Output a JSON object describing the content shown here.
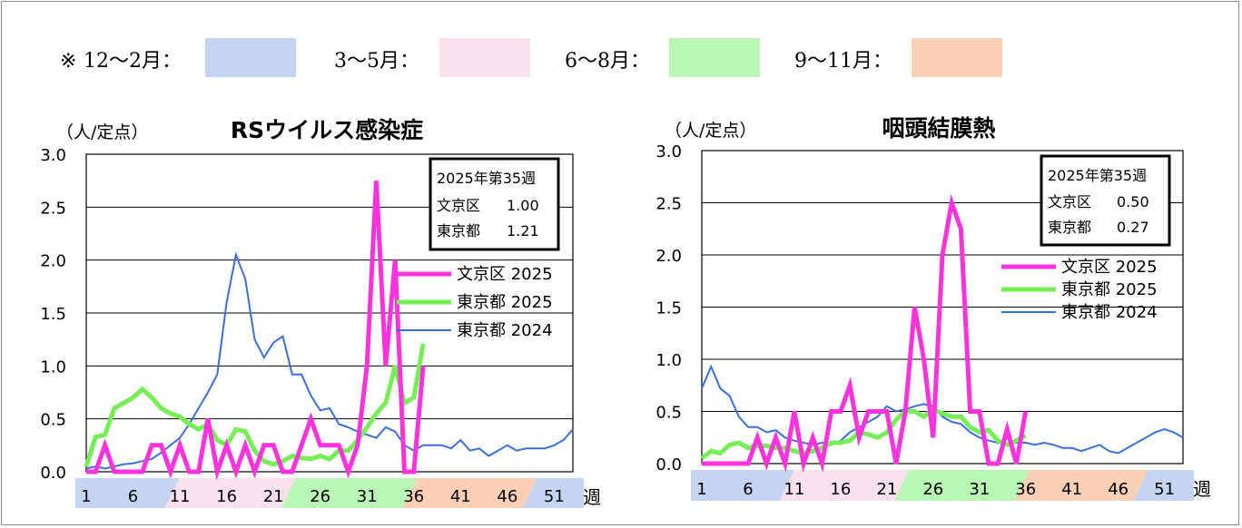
{
  "season_legend": {
    "prefix": "※",
    "items": [
      {
        "label": "12～2月：",
        "color": "#c6d4f2"
      },
      {
        "label": "3～5月：",
        "color": "#fbe0ee"
      },
      {
        "label": "6～8月：",
        "color": "#b8f7b4"
      },
      {
        "label": "9～11月：",
        "color": "#fbd0b4"
      }
    ]
  },
  "colors": {
    "bunkyo2025": "#ff33dd",
    "tokyo2025": "#77ee55",
    "tokyo2024": "#3a6fe0"
  },
  "chart_data": [
    {
      "type": "line",
      "title": "RSウイルス感染症",
      "ylabel": "（人/定点）",
      "xlabel": "週",
      "ylim": [
        0,
        3.0
      ],
      "yticks": [
        "0.0",
        "0.5",
        "1.0",
        "1.5",
        "2.0",
        "2.5",
        "3.0"
      ],
      "xlim": [
        1,
        53
      ],
      "xtick_labels": [
        "1",
        "6",
        "11",
        "16",
        "21",
        "26",
        "31",
        "36",
        "41",
        "46",
        "51"
      ],
      "grid": true,
      "info_box": {
        "line1": "2025年第35週",
        "line2_label": "文京区",
        "line2_value": "1.00",
        "line3_label": "東京都",
        "line3_value": "1.21"
      },
      "legend_position": "right",
      "series": [
        {
          "name": "文京区 2025",
          "color": "#ff33dd",
          "width": 5,
          "values": [
            0,
            0,
            0.25,
            0,
            0,
            0,
            0,
            0.25,
            0.25,
            0,
            0.25,
            0,
            0,
            0.5,
            0,
            0.25,
            0,
            0.25,
            0,
            0.25,
            0.25,
            0,
            0,
            0.25,
            0.5,
            0.25,
            0.25,
            0.25,
            0,
            0.25,
            1.0,
            2.75,
            1.0,
            2.0,
            0,
            0,
            1.0
          ]
        },
        {
          "name": "東京都 2025",
          "color": "#77ee55",
          "width": 5,
          "values": [
            0.05,
            0.33,
            0.35,
            0.6,
            0.65,
            0.7,
            0.78,
            0.7,
            0.6,
            0.55,
            0.52,
            0.45,
            0.4,
            0.45,
            0.3,
            0.25,
            0.4,
            0.38,
            0.2,
            0.1,
            0.07,
            0.1,
            0.15,
            0.13,
            0.12,
            0.15,
            0.12,
            0.2,
            0.2,
            0.3,
            0.42,
            0.55,
            0.65,
            1.0,
            0.65,
            0.7,
            1.21
          ]
        },
        {
          "name": "東京都 2024",
          "color": "#3a6fe0",
          "width": 2,
          "values": [
            0.03,
            0.05,
            0.03,
            0.05,
            0.07,
            0.08,
            0.1,
            0.12,
            0.18,
            0.25,
            0.32,
            0.45,
            0.6,
            0.75,
            0.92,
            1.6,
            2.05,
            1.82,
            1.25,
            1.08,
            1.22,
            1.28,
            0.92,
            0.92,
            0.72,
            0.58,
            0.6,
            0.45,
            0.42,
            0.38,
            0.35,
            0.32,
            0.42,
            0.38,
            0.25,
            0.2,
            0.25,
            0.25,
            0.25,
            0.22,
            0.3,
            0.2,
            0.22,
            0.15,
            0.2,
            0.25,
            0.2,
            0.22,
            0.22,
            0.22,
            0.25,
            0.3,
            0.4
          ]
        }
      ]
    },
    {
      "type": "line",
      "title": "咽頭結膜熱",
      "ylabel": "（人/定点）",
      "xlabel": "週",
      "ylim": [
        0,
        3.0
      ],
      "yticks": [
        "0.0",
        "0.5",
        "1.0",
        "1.5",
        "2.0",
        "2.5",
        "3.0"
      ],
      "xlim": [
        1,
        53
      ],
      "xtick_labels": [
        "1",
        "6",
        "11",
        "16",
        "21",
        "26",
        "31",
        "36",
        "41",
        "46",
        "51"
      ],
      "grid": true,
      "info_box": {
        "line1": "2025年第35週",
        "line2_label": "文京区",
        "line2_value": "0.50",
        "line3_label": "東京都",
        "line3_value": "0.27"
      },
      "legend_position": "right",
      "series": [
        {
          "name": "文京区 2025",
          "color": "#ff33dd",
          "width": 5,
          "values": [
            0,
            0,
            0,
            0,
            0,
            0,
            0.25,
            0,
            0.25,
            0,
            0.5,
            0,
            0.25,
            0,
            0.5,
            0.5,
            0.75,
            0.25,
            0.5,
            0.5,
            0.5,
            0,
            0.5,
            1.5,
            1.0,
            0.25,
            2.0,
            2.5,
            2.25,
            0.5,
            0.5,
            0,
            0,
            0.33,
            0,
            0.5
          ]
        },
        {
          "name": "東京都 2025",
          "color": "#77ee55",
          "width": 5,
          "values": [
            0.05,
            0.12,
            0.1,
            0.18,
            0.2,
            0.15,
            0.17,
            0.17,
            0.15,
            0.15,
            0.12,
            0.1,
            0.12,
            0.15,
            0.2,
            0.2,
            0.22,
            0.3,
            0.28,
            0.25,
            0.3,
            0.42,
            0.5,
            0.5,
            0.45,
            0.52,
            0.48,
            0.45,
            0.45,
            0.35,
            0.3,
            0.32,
            0.22,
            0.18,
            0.22,
            0.27
          ]
        },
        {
          "name": "東京都 2024",
          "color": "#3a6fe0",
          "width": 2,
          "values": [
            0.72,
            0.93,
            0.72,
            0.65,
            0.45,
            0.35,
            0.35,
            0.3,
            0.32,
            0.25,
            0.22,
            0.2,
            0.18,
            0.2,
            0.18,
            0.22,
            0.3,
            0.35,
            0.4,
            0.45,
            0.55,
            0.5,
            0.52,
            0.55,
            0.57,
            0.55,
            0.45,
            0.4,
            0.38,
            0.3,
            0.25,
            0.22,
            0.2,
            0.18,
            0.2,
            0.2,
            0.18,
            0.2,
            0.18,
            0.15,
            0.15,
            0.12,
            0.15,
            0.18,
            0.12,
            0.1,
            0.15,
            0.2,
            0.25,
            0.3,
            0.33,
            0.3,
            0.25
          ]
        }
      ]
    }
  ]
}
